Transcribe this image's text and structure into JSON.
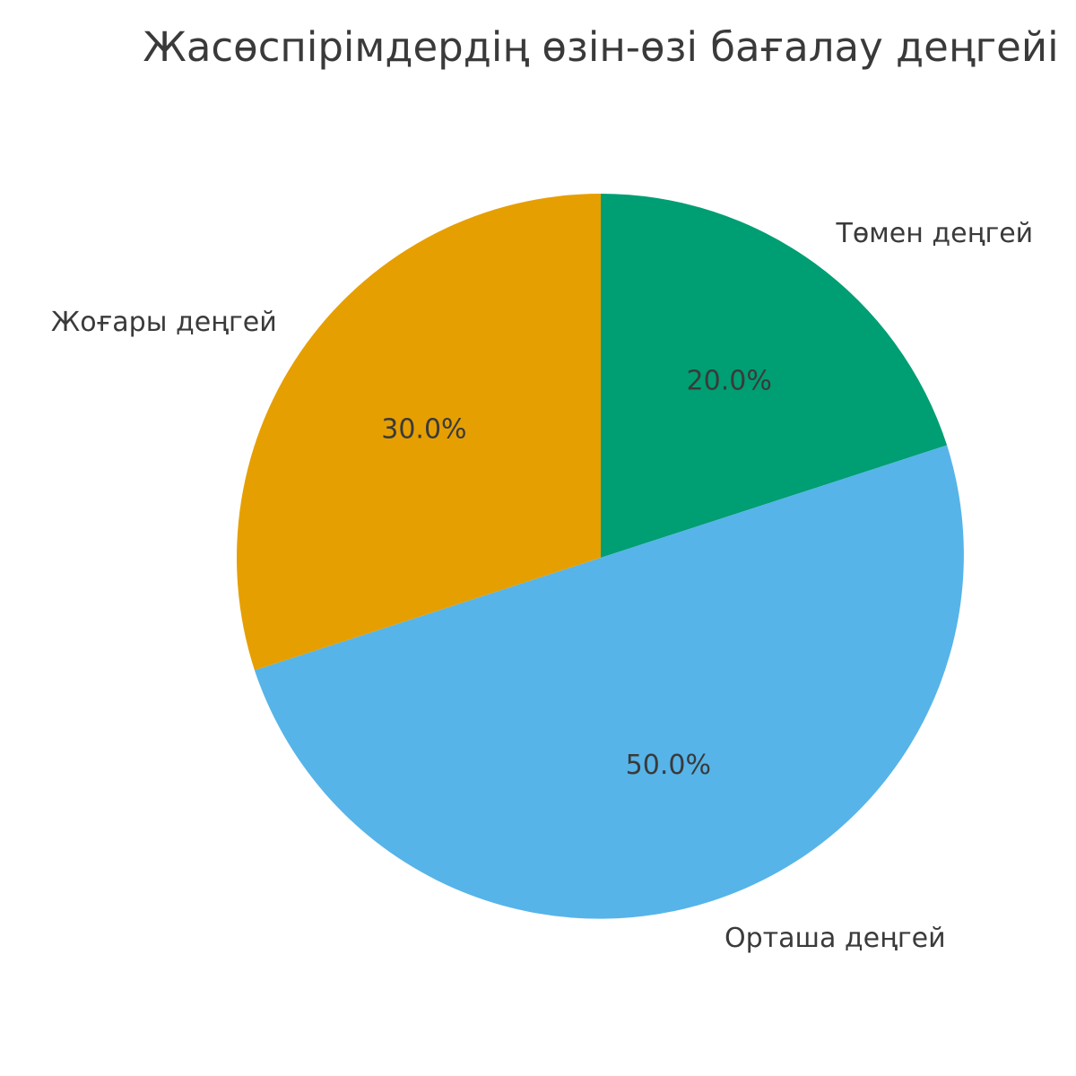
{
  "title": "Жасөспірімдердің өзін-өзі бағалау деңгейі",
  "chart_data": {
    "type": "pie",
    "title": "Жасөспірімдердің өзін-өзі бағалау деңгейі",
    "slices": [
      {
        "label": "Төмен деңгей",
        "value": 20.0,
        "pct_label": "20.0%",
        "color": "#009E73"
      },
      {
        "label": "Орташа деңгей",
        "value": 50.0,
        "pct_label": "50.0%",
        "color": "#56B4E9"
      },
      {
        "label": "Жоғары деңгей",
        "value": 30.0,
        "pct_label": "30.0%",
        "color": "#E69F00"
      }
    ],
    "start_angle": 90,
    "direction": "clockwise",
    "label_distance": 1.1,
    "pct_distance": 0.6,
    "text_color": "#3A3A3A",
    "background": "#FFFFFF",
    "legend": "none"
  }
}
